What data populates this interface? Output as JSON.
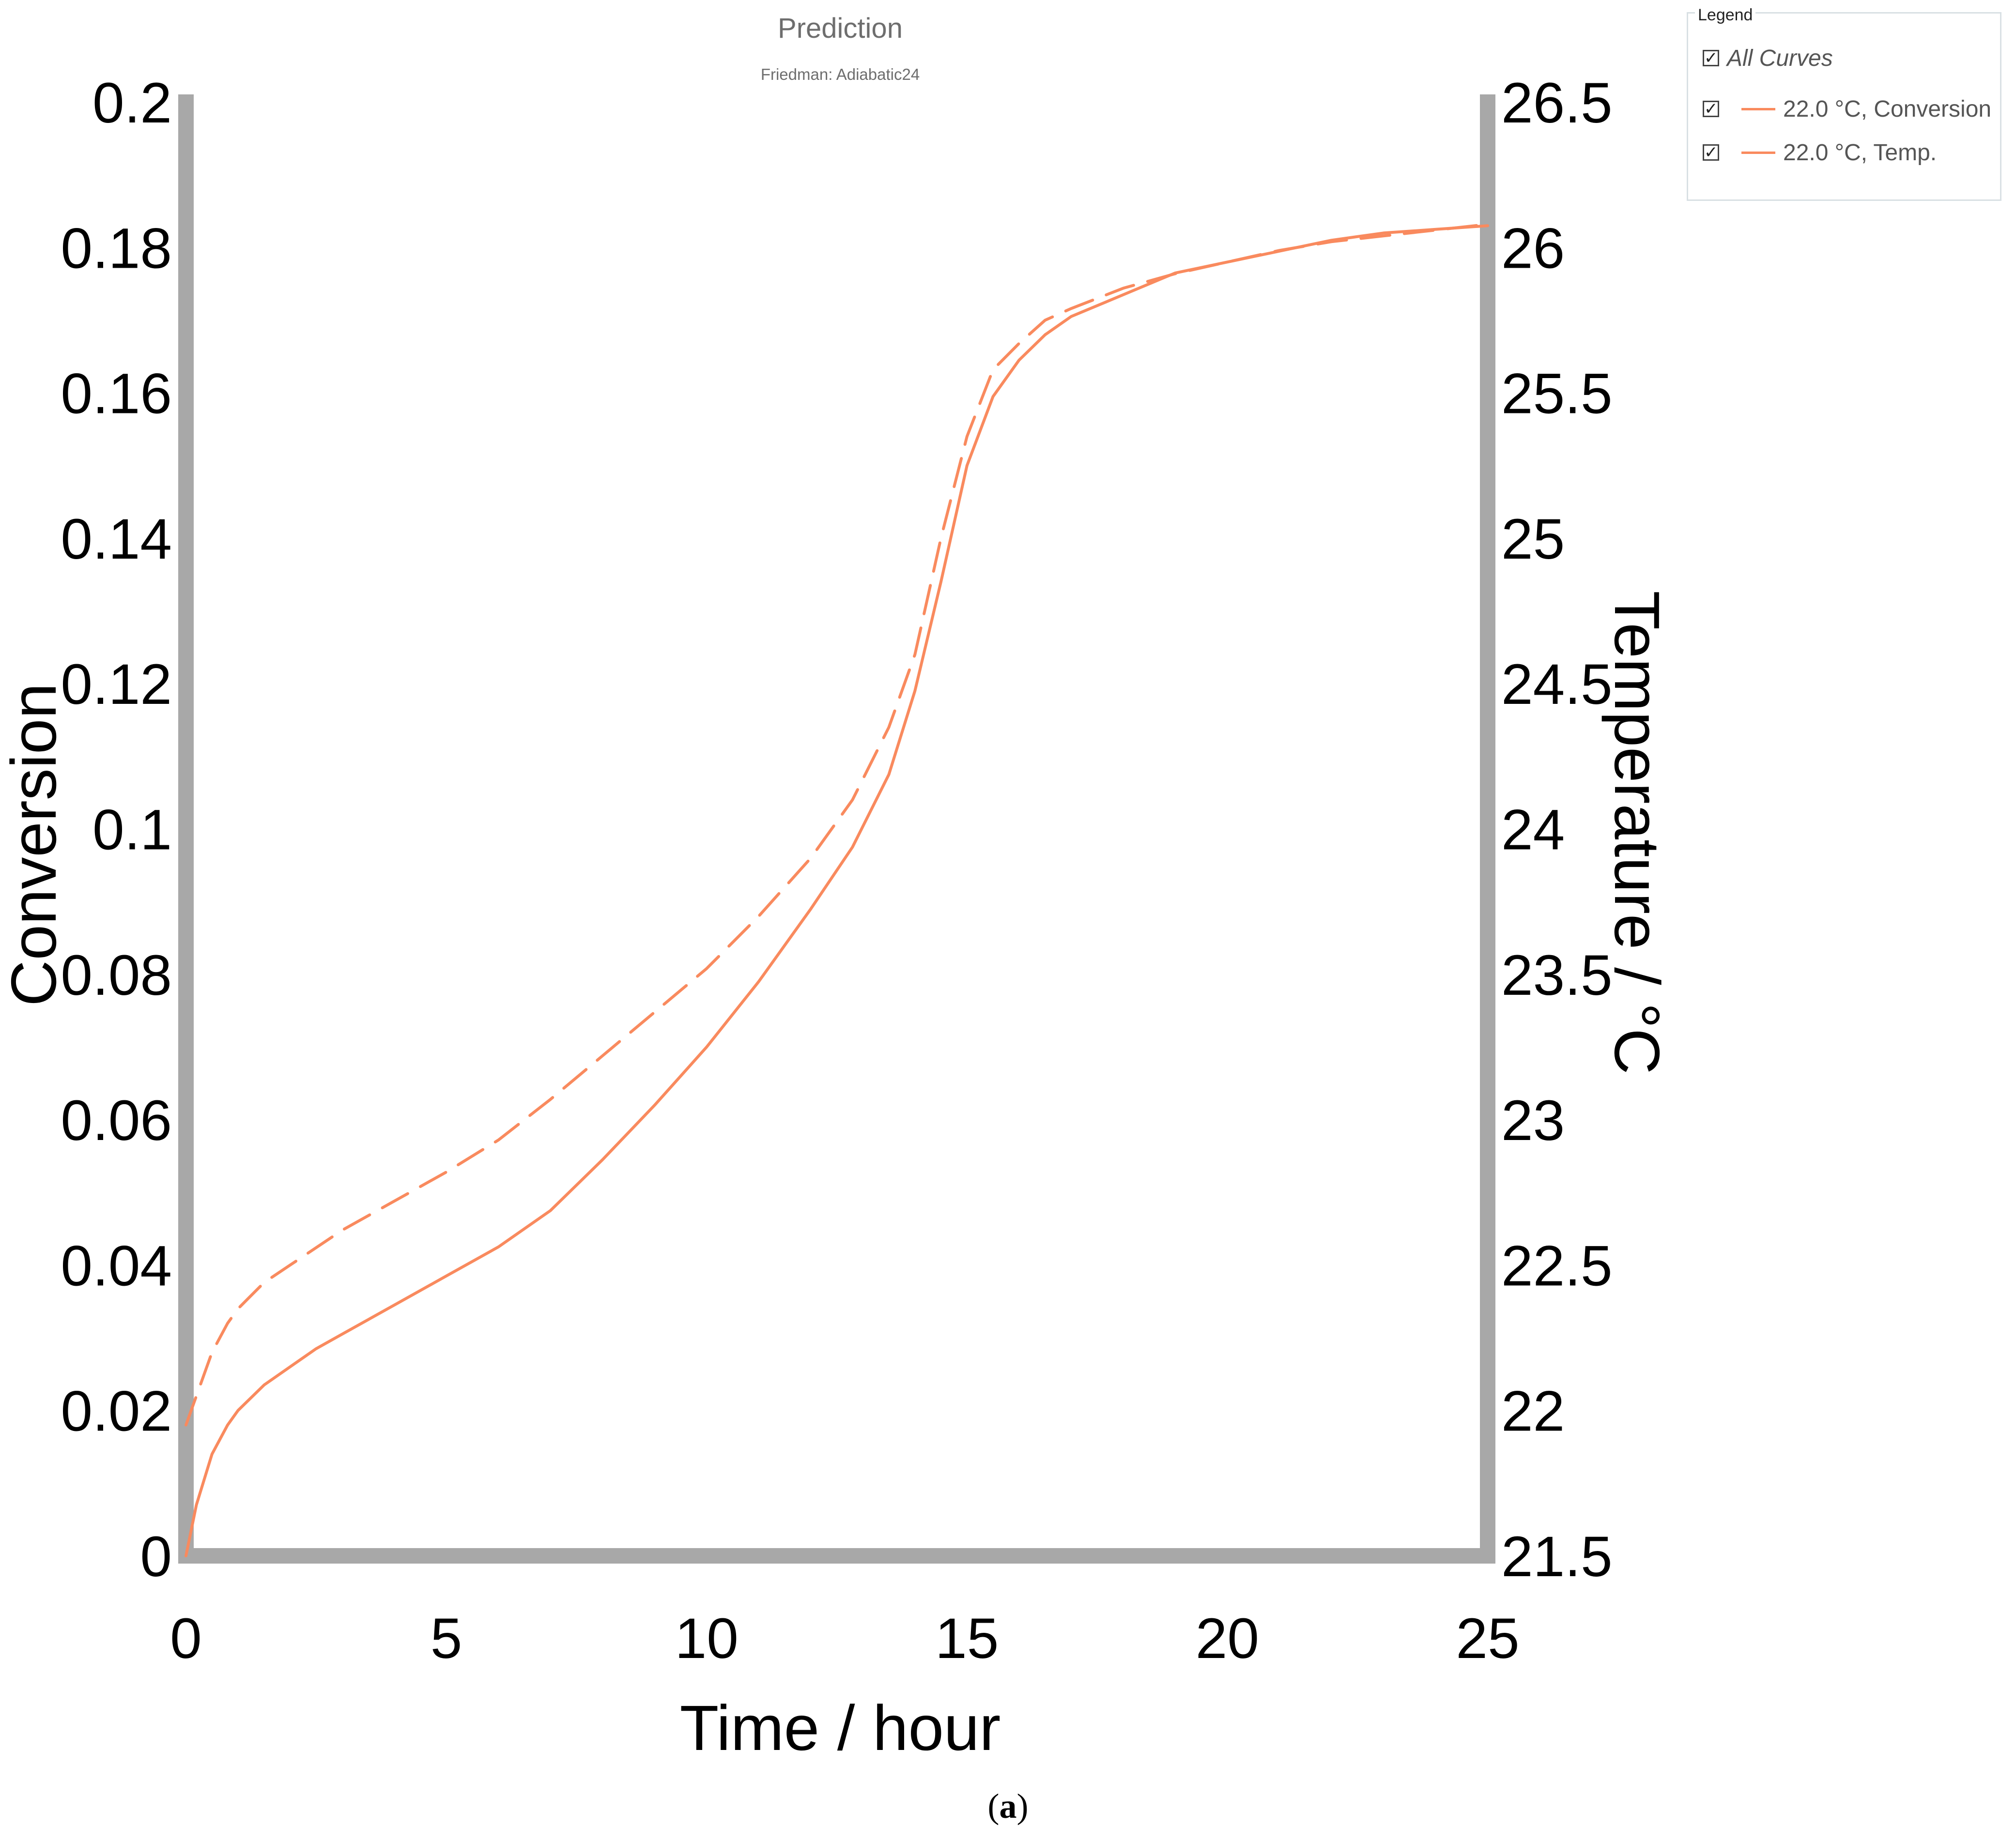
{
  "chart_data": {
    "type": "line",
    "title": "Prediction",
    "subtitle": "Friedman: Adiabatic24",
    "xlabel": "Time / hour",
    "ylabel": "Conversion",
    "y2label": "Temperature / °C",
    "xlim": [
      0,
      25
    ],
    "ylim": [
      0,
      0.2
    ],
    "y2lim": [
      21.5,
      26.5
    ],
    "xticks": [
      "0",
      "5",
      "10",
      "15",
      "20",
      "25"
    ],
    "yticks": [
      "0",
      "0.02",
      "0.04",
      "0.06",
      "0.08",
      "0.1",
      "0.12",
      "0.14",
      "0.16",
      "0.18",
      "0.2"
    ],
    "y2ticks": [
      "21.5",
      "22",
      "22.5",
      "23",
      "23.5",
      "24",
      "24.5",
      "25",
      "25.5",
      "26",
      "26.5"
    ],
    "grid": false,
    "legend_position": "top-right",
    "series": [
      {
        "name": "22.0 °C, Conversion",
        "axis": "left",
        "style": "solid",
        "color": "#f98a5e",
        "x": [
          0,
          0.2,
          0.5,
          0.8,
          1.0,
          1.5,
          2.0,
          2.5,
          3,
          4,
          5,
          6,
          7,
          8,
          9,
          10,
          11,
          12,
          12.8,
          13.5,
          14.0,
          14.5,
          15.0,
          15.5,
          16.0,
          16.5,
          17,
          18,
          19,
          20,
          21,
          22,
          23,
          24,
          25
        ],
        "y": [
          0,
          0.007,
          0.014,
          0.018,
          0.02,
          0.0235,
          0.026,
          0.0285,
          0.0305,
          0.0345,
          0.0385,
          0.0425,
          0.0475,
          0.0545,
          0.062,
          0.07,
          0.079,
          0.089,
          0.0975,
          0.1075,
          0.119,
          0.134,
          0.15,
          0.1595,
          0.1645,
          0.168,
          0.1705,
          0.1735,
          0.1765,
          0.178,
          0.1795,
          0.181,
          0.182,
          0.1825,
          0.183
        ]
      },
      {
        "name": "22.0 °C, Temp.",
        "axis": "right",
        "style": "dashed",
        "color": "#f98a5e",
        "x": [
          0,
          0.2,
          0.5,
          0.8,
          1.0,
          1.5,
          2.0,
          2.5,
          3,
          4,
          5,
          6,
          7,
          8,
          9,
          10,
          11,
          12,
          12.8,
          13.5,
          14.0,
          14.5,
          15.0,
          15.5,
          16.0,
          16.5,
          17,
          18,
          19,
          20,
          21,
          22,
          23,
          24,
          25
        ],
        "y": [
          21.95,
          22.05,
          22.2,
          22.3,
          22.35,
          22.44,
          22.5,
          22.56,
          22.62,
          22.72,
          22.82,
          22.93,
          23.07,
          23.22,
          23.37,
          23.52,
          23.7,
          23.9,
          24.1,
          24.35,
          24.6,
          25.0,
          25.35,
          25.58,
          25.67,
          25.75,
          25.79,
          25.86,
          25.91,
          25.95,
          25.99,
          26.02,
          26.04,
          26.06,
          26.08
        ]
      }
    ]
  },
  "legend": {
    "caption": "Legend",
    "all_curves": "All Curves",
    "check_glyph": "✓",
    "items": [
      "22.0 °C, Conversion",
      "22.0 °C, Temp."
    ]
  },
  "figure_caption": {
    "paren_open": "(",
    "letter": "a",
    "paren_close": ")"
  }
}
